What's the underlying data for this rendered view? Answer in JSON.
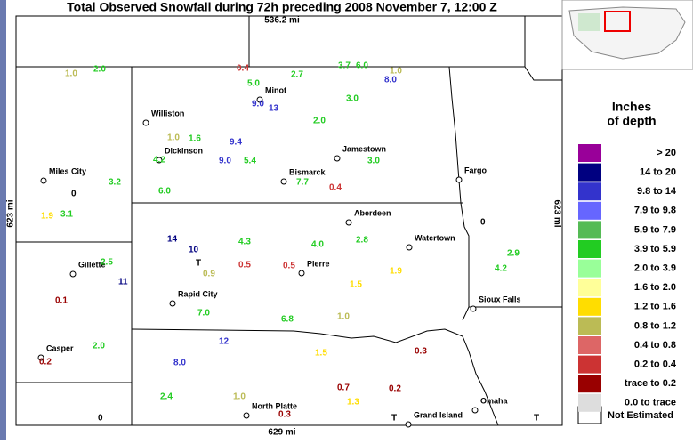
{
  "header": {
    "title": "Total Observed Snowfall during 72h preceding 2008 November 7, 12:00 Z"
  },
  "map": {
    "scale_top": "536.2 mi",
    "scale_bottom": "629 mi",
    "scale_side": "623 mi",
    "cities": [
      "Williston",
      "Minot",
      "Dickinson",
      "Miles City",
      "Jamestown",
      "Bismarck",
      "Fargo",
      "Aberdeen",
      "Watertown",
      "Pierre",
      "Gillette",
      "Rapid City",
      "Sioux Falls",
      "Casper",
      "North Platte",
      "Grand Island",
      "Omaha"
    ],
    "observations": [
      {
        "label": "1.0",
        "color": "#bbbb55"
      },
      {
        "label": "2.0",
        "color": "#22cc22"
      },
      {
        "label": "0.4",
        "color": "#cc3333"
      },
      {
        "label": "5.0",
        "color": "#22cc22"
      },
      {
        "label": "2.7",
        "color": "#22cc22"
      },
      {
        "label": "3.7",
        "color": "#22cc22"
      },
      {
        "label": "6.0",
        "color": "#22cc22"
      },
      {
        "label": "1.0",
        "color": "#bbbb55"
      },
      {
        "label": "8.0",
        "color": "#3333cc"
      },
      {
        "label": "9.0",
        "color": "#3333cc"
      },
      {
        "label": "13",
        "color": "#3333cc"
      },
      {
        "label": "2.0",
        "color": "#22cc22"
      },
      {
        "label": "3.0",
        "color": "#22cc22"
      },
      {
        "label": "1.0",
        "color": "#bbbb55"
      },
      {
        "label": "1.6",
        "color": "#22cc22"
      },
      {
        "label": "9.4",
        "color": "#3333cc"
      },
      {
        "label": "4.2",
        "color": "#22cc22"
      },
      {
        "label": "9.0",
        "color": "#3333cc"
      },
      {
        "label": "5.4",
        "color": "#22cc22"
      },
      {
        "label": "3.0",
        "color": "#22cc22"
      },
      {
        "label": "7.7",
        "color": "#22cc22"
      },
      {
        "label": "0.4",
        "color": "#cc3333"
      },
      {
        "label": "6.0",
        "color": "#22cc22"
      },
      {
        "label": "3.2",
        "color": "#22cc22"
      },
      {
        "label": "1.9",
        "color": "#ffdd00"
      },
      {
        "label": "3.1",
        "color": "#22cc22"
      },
      {
        "label": "14",
        "color": "#000080"
      },
      {
        "label": "10",
        "color": "#000080"
      },
      {
        "label": "4.3",
        "color": "#22cc22"
      },
      {
        "label": "0.5",
        "color": "#cc3333"
      },
      {
        "label": "0.9",
        "color": "#bbbb55"
      },
      {
        "label": "2.5",
        "color": "#22cc22"
      },
      {
        "label": "11",
        "color": "#000080"
      },
      {
        "label": "2.8",
        "color": "#22cc22"
      },
      {
        "label": "4.0",
        "color": "#22cc22"
      },
      {
        "label": "1.5",
        "color": "#ffdd00"
      },
      {
        "label": "1.9",
        "color": "#ffdd00"
      },
      {
        "label": "4.2",
        "color": "#22cc22"
      },
      {
        "label": "2.9",
        "color": "#22cc22"
      },
      {
        "label": "0.5",
        "color": "#cc3333"
      },
      {
        "label": "0.1",
        "color": "#990000"
      },
      {
        "label": "7.0",
        "color": "#22cc22"
      },
      {
        "label": "12",
        "color": "#3333cc"
      },
      {
        "label": "6.8",
        "color": "#22cc22"
      },
      {
        "label": "1.0",
        "color": "#bbbb55"
      },
      {
        "label": "0.2",
        "color": "#990000"
      },
      {
        "label": "2.0",
        "color": "#22cc22"
      },
      {
        "label": "8.0",
        "color": "#3333cc"
      },
      {
        "label": "1.5",
        "color": "#ffdd00"
      },
      {
        "label": "0.3",
        "color": "#990000"
      },
      {
        "label": "0.7",
        "color": "#990000"
      },
      {
        "label": "0.2",
        "color": "#990000"
      },
      {
        "label": "1.3",
        "color": "#ffdd00"
      },
      {
        "label": "2.4",
        "color": "#22cc22"
      },
      {
        "label": "1.0",
        "color": "#bbbb55"
      },
      {
        "label": "0.3",
        "color": "#990000"
      },
      {
        "label": "T",
        "color": "#000000"
      },
      {
        "label": "T",
        "color": "#000000"
      },
      {
        "label": "T",
        "color": "#000000"
      },
      {
        "label": "0",
        "color": "#000000"
      },
      {
        "label": "0",
        "color": "#000000"
      },
      {
        "label": "0",
        "color": "#000000"
      }
    ],
    "observation_positions_note_removed": null
  },
  "legend": {
    "title": [
      "Inches",
      "of depth"
    ],
    "items": [
      {
        "label": ">  20",
        "color": "#990099"
      },
      {
        "label": "14 to  20",
        "color": "#000080"
      },
      {
        "label": "9.8 to  14",
        "color": "#3333cc"
      },
      {
        "label": "7.9 to  9.8",
        "color": "#6666ff"
      },
      {
        "label": "5.9 to  7.9",
        "color": "#55bb55"
      },
      {
        "label": "3.9 to  5.9",
        "color": "#22cc22"
      },
      {
        "label": "2.0 to  3.9",
        "color": "#99ff99"
      },
      {
        "label": "1.6 to  2.0",
        "color": "#ffff99"
      },
      {
        "label": "1.2 to  1.6",
        "color": "#ffdd00"
      },
      {
        "label": "0.8 to  1.2",
        "color": "#bbbb55"
      },
      {
        "label": "0.4 to  0.8",
        "color": "#dd6666"
      },
      {
        "label": "0.2 to  0.4",
        "color": "#cc3333"
      },
      {
        "label": "trace to  0.2",
        "color": "#990000"
      },
      {
        "label": "0.0 to trace",
        "color": "#dddddd"
      }
    ],
    "not_estimated": "Not Estimated"
  }
}
